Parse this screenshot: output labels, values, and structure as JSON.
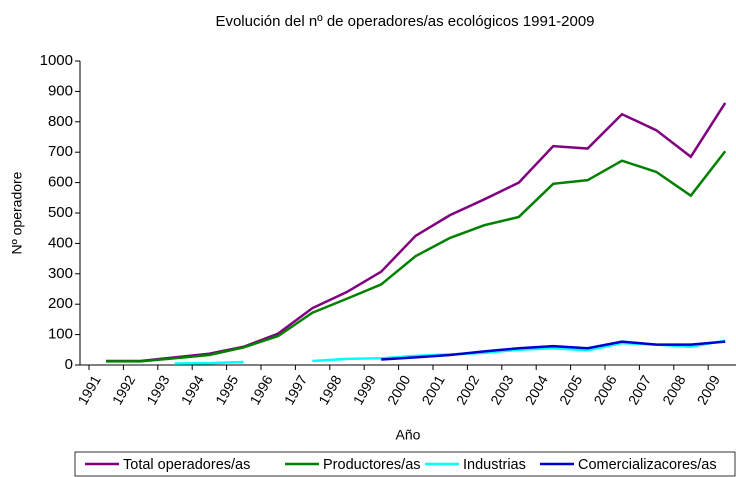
{
  "chart_data": {
    "type": "line",
    "title": "Evolución del nº de operadores/as ecológicos 1991-2009",
    "x_label": "Año",
    "y_label": "Nº operadore",
    "categories": [
      "1991",
      "1992",
      "1993",
      "1994",
      "1995",
      "1996",
      "1997",
      "1998",
      "1999",
      "2000",
      "2001",
      "2002",
      "2003",
      "2004",
      "2005",
      "2006",
      "2007",
      "2008",
      "2009"
    ],
    "series": [
      {
        "name": "Total operadores/as",
        "color": "#800080",
        "values": [
          13,
          13,
          25,
          37,
          60,
          103,
          187,
          240,
          307,
          425,
          493,
          545,
          600,
          720,
          712,
          825,
          772,
          685,
          862
        ]
      },
      {
        "name": "Productores/as",
        "color": "#008000",
        "values": [
          12,
          12,
          22,
          33,
          58,
          95,
          172,
          218,
          265,
          358,
          418,
          460,
          487,
          596,
          608,
          672,
          635,
          557,
          703
        ]
      },
      {
        "name": "Industrias",
        "color": "#00ffff",
        "values": [
          null,
          null,
          5,
          6,
          10,
          null,
          13,
          20,
          22,
          30,
          35,
          40,
          50,
          55,
          48,
          72,
          67,
          60,
          80
        ]
      },
      {
        "name": "Comercializacores/as",
        "color": "#0000cc",
        "values": [
          null,
          null,
          null,
          null,
          null,
          null,
          null,
          null,
          18,
          25,
          33,
          45,
          55,
          62,
          55,
          77,
          67,
          67,
          77
        ]
      }
    ],
    "ylim": [
      0,
      1000
    ],
    "yticks": [
      0,
      100,
      200,
      300,
      400,
      500,
      600,
      700,
      800,
      900,
      1000
    ],
    "grid": false,
    "legend": "bottom"
  }
}
